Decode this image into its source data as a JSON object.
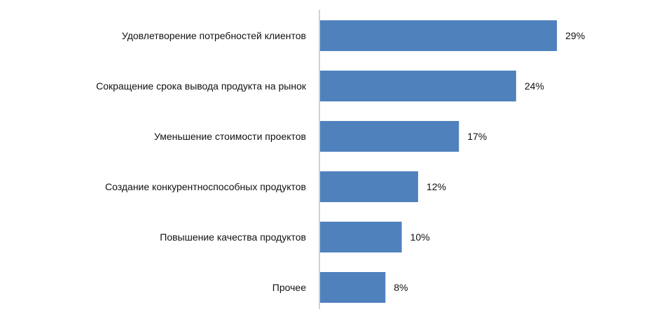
{
  "chart_data": {
    "type": "bar",
    "orientation": "horizontal",
    "categories": [
      "Удовлетворение потребностей клиентов",
      "Сокращение срока вывода продукта на рынок",
      "Уменьшение стоимости проектов",
      "Создание конкурентноспособных продуктов",
      "Повышение качества продуктов",
      "Прочее"
    ],
    "values": [
      29,
      24,
      17,
      12,
      10,
      8
    ],
    "value_labels": [
      "29%",
      "24%",
      "17%",
      "12%",
      "10%",
      "8%"
    ],
    "unit": "%",
    "xlim": [
      0,
      30
    ],
    "grid": false,
    "legend": "none",
    "colors": {
      "bar": "#4f81bd",
      "axis": "#a6a6a6",
      "text": "#111111"
    }
  }
}
